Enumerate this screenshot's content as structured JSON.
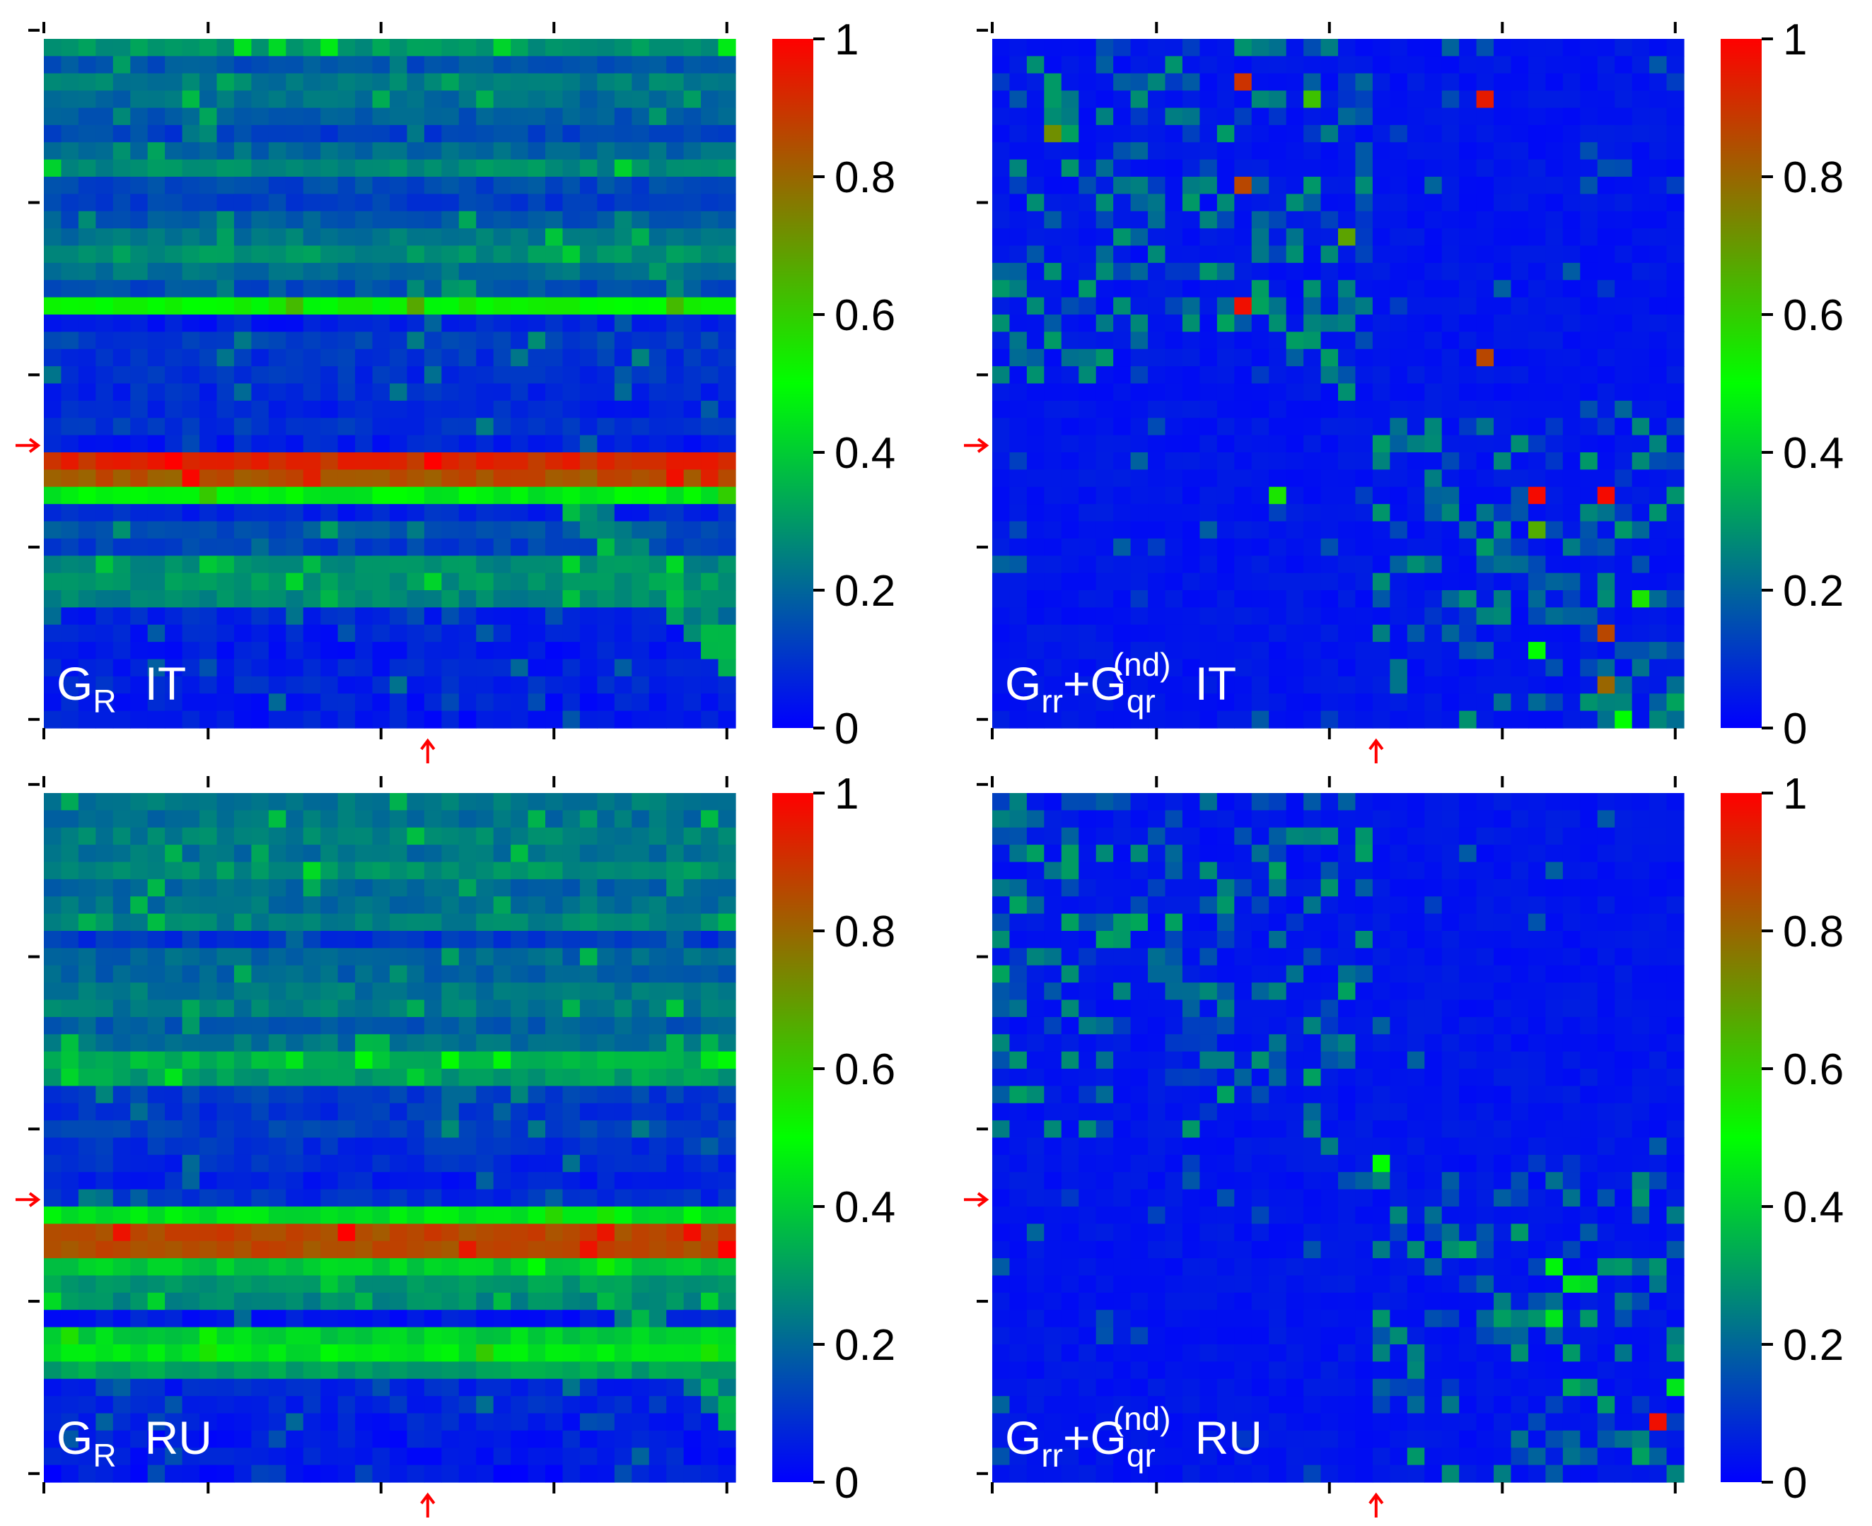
{
  "chart_data": {
    "type": "heatmap",
    "colormap": [
      "#0000ff",
      "#00ff00",
      "#ff0000"
    ],
    "colorbar_ticks": [
      "0",
      "0.2",
      "0.4",
      "0.6",
      "0.8",
      "1"
    ],
    "colorbar_range": [
      0,
      1
    ],
    "grid_size": 40,
    "marker_index": 23,
    "panels": [
      {
        "id": "gr-it",
        "kind": "rows",
        "label_main": "G",
        "label_sub1": "R",
        "label_sup": "",
        "label_rest": "",
        "label_suffix": "IT",
        "seed": 11,
        "row_levels": [
          0.3,
          0.16,
          0.24,
          0.21,
          0.18,
          0.13,
          0.2,
          0.27,
          0.14,
          0.12,
          0.17,
          0.23,
          0.28,
          0.22,
          0.15,
          0.52,
          0.06,
          0.12,
          0.1,
          0.09,
          0.08,
          0.07,
          0.1,
          0.06,
          0.92,
          0.84,
          0.47,
          0.07,
          0.16,
          0.12,
          0.27,
          0.29,
          0.26,
          0.07,
          0.06,
          0.05,
          0.06,
          0.07,
          0.05,
          0.05
        ]
      },
      {
        "id": "grr-it",
        "kind": "blocks",
        "label_main": "G",
        "label_sub1": "rr",
        "label_sup": "(nd)",
        "label_rest": "+G",
        "label_sub2": "qr",
        "label_suffix": "IT",
        "seed": 23,
        "hotspots": [
          [
            3,
            28,
            0.95
          ],
          [
            8,
            14,
            0.86
          ],
          [
            15,
            14,
            0.97
          ],
          [
            18,
            28,
            0.86
          ],
          [
            11,
            20,
            0.68
          ],
          [
            2,
            14,
            0.9
          ],
          [
            3,
            18,
            0.62
          ],
          [
            5,
            3,
            0.72
          ],
          [
            26,
            31,
            0.98
          ],
          [
            28,
            31,
            0.66
          ],
          [
            26,
            16,
            0.55
          ],
          [
            34,
            35,
            0.86
          ],
          [
            37,
            35,
            0.8
          ],
          [
            32,
            37,
            0.55
          ],
          [
            35,
            31,
            0.5
          ],
          [
            39,
            36,
            0.5
          ],
          [
            26,
            35,
            0.98
          ]
        ]
      },
      {
        "id": "gr-ru",
        "kind": "rows",
        "label_main": "G",
        "label_sub1": "R",
        "label_sup": "",
        "label_rest": "",
        "label_suffix": "RU",
        "seed": 37,
        "row_levels": [
          0.24,
          0.22,
          0.25,
          0.22,
          0.28,
          0.2,
          0.22,
          0.26,
          0.1,
          0.2,
          0.19,
          0.23,
          0.24,
          0.18,
          0.22,
          0.35,
          0.31,
          0.12,
          0.1,
          0.12,
          0.09,
          0.08,
          0.06,
          0.09,
          0.45,
          0.86,
          0.85,
          0.4,
          0.3,
          0.27,
          0.05,
          0.41,
          0.45,
          0.32,
          0.07,
          0.08,
          0.06,
          0.05,
          0.05,
          0.04
        ]
      },
      {
        "id": "grr-ru",
        "kind": "blocks",
        "label_main": "G",
        "label_sub1": "rr",
        "label_sup": "(nd)",
        "label_rest": "+G",
        "label_sub2": "qr",
        "label_suffix": "RU",
        "seed": 53,
        "hotspots": [
          [
            36,
            38,
            0.97
          ],
          [
            21,
            22,
            0.5
          ],
          [
            27,
            32,
            0.48
          ],
          [
            30,
            32,
            0.45
          ],
          [
            28,
            33,
            0.45
          ],
          [
            28,
            34,
            0.42
          ],
          [
            34,
            39,
            0.45
          ]
        ]
      }
    ]
  }
}
